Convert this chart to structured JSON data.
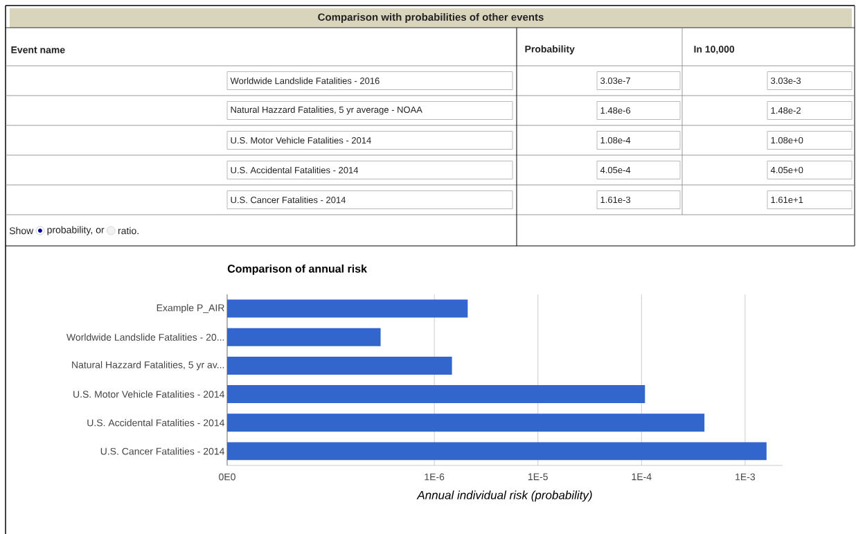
{
  "chart_data": [
    {
      "type": "other",
      "title": "Comparison with probabilities of other events",
      "annotations": [
        "Event name",
        "Probability",
        "In 10,000",
        "Worldwide Landslide Fatalities  - 2016",
        "3.03e-7",
        "3.03e-3",
        "Natural Hazzard Fatalities, 5 yr average - NOAA",
        "1.48e-6",
        "1.48e-2",
        "U.S. Motor Vehicle Fatalities - 2014",
        "1.08e-4",
        "1.08e+0",
        "U.S. Accidental Fatalities - 2014",
        "4.05e-4",
        "4.05e+0",
        "U.S. Cancer Fatalities - 2014",
        "1.61e-3",
        "1.61e+1",
        "Show",
        "probability, or",
        "ratio."
      ]
    },
    {
      "type": "bar",
      "orientation": "horizontal",
      "title": "Comparison of annual risk",
      "xlabel": "Annual individual risk (probability)",
      "categories": [
        "Example P_AIR",
        "Worldwide Landslide Fatalities  - 20...",
        "Natural Hazzard Fatalities, 5 yr av...",
        "U.S. Motor Vehicle Fatalities - 2014",
        "U.S. Accidental Fatalities - 2014",
        "U.S. Cancer Fatalities - 2014"
      ],
      "values": [
        2.1e-06,
        3.03e-07,
        1.48e-06,
        0.000108,
        0.000405,
        0.00161
      ],
      "color": "#3366cc",
      "log": "x",
      "grid": "x",
      "xlim": [
        1e-08,
        0.0023
      ],
      "xticks": [
        {
          "value": 1e-08,
          "label": "0E0"
        },
        {
          "value": 1e-06,
          "label": "1E-6"
        },
        {
          "value": 1e-05,
          "label": "1E-5"
        },
        {
          "value": 0.0001,
          "label": "1E-4"
        },
        {
          "value": 0.001,
          "label": "1E-3"
        }
      ]
    }
  ]
}
